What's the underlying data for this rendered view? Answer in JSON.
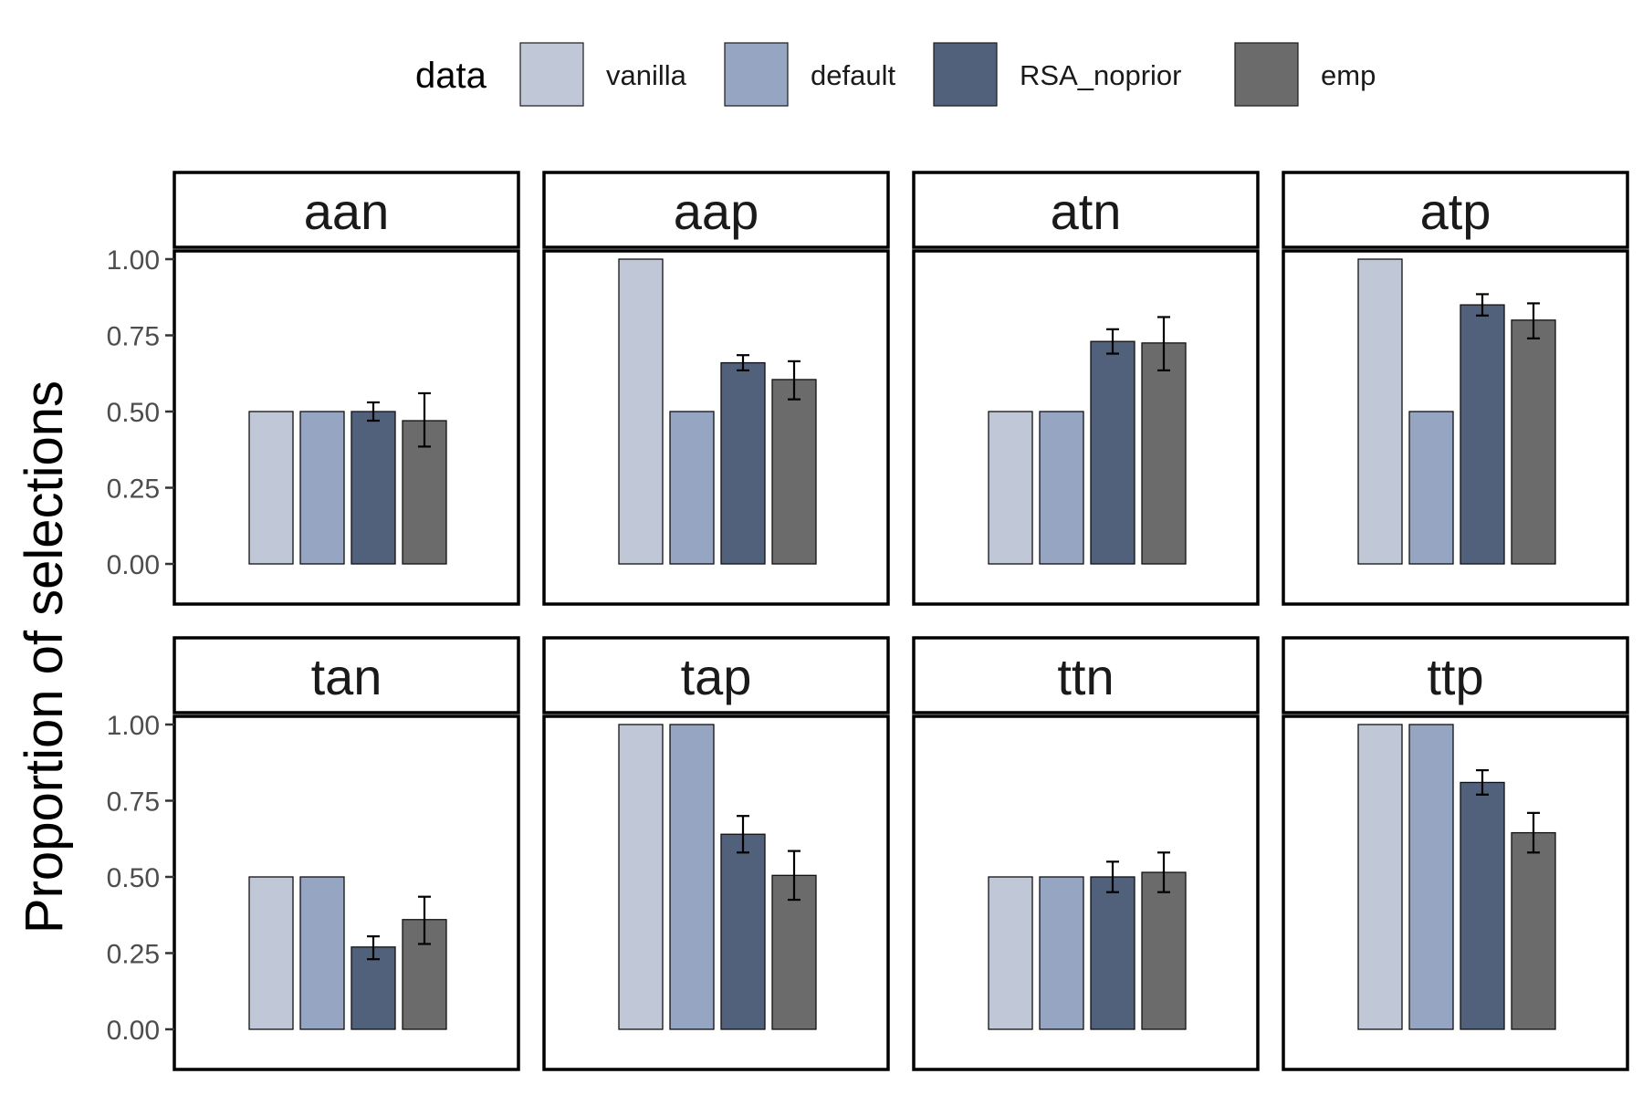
{
  "chart_data": {
    "type": "bar",
    "ylabel": "Proportion of selections",
    "ylim": [
      0,
      1
    ],
    "yticks": [
      "0.00",
      "0.25",
      "0.50",
      "0.75",
      "1.00"
    ],
    "legend": {
      "title": "data",
      "position": "top",
      "entries": [
        {
          "label": "vanilla",
          "color": "#c0c8d8"
        },
        {
          "label": "default",
          "color": "#95a5c2"
        },
        {
          "label": "RSA_noprior",
          "color": "#51607b"
        },
        {
          "label": "emp",
          "color": "#6b6b6b"
        }
      ]
    },
    "series_names": [
      "vanilla",
      "default",
      "RSA_noprior",
      "emp"
    ],
    "grid": false,
    "panels": [
      {
        "title": "aan",
        "values": [
          0.5,
          0.5,
          0.5,
          0.47
        ],
        "errors": [
          null,
          null,
          [
            0.47,
            0.53
          ],
          [
            0.385,
            0.56
          ]
        ]
      },
      {
        "title": "aap",
        "values": [
          1.0,
          0.5,
          0.66,
          0.605
        ],
        "errors": [
          null,
          null,
          [
            0.635,
            0.685
          ],
          [
            0.54,
            0.665
          ]
        ]
      },
      {
        "title": "atn",
        "values": [
          0.5,
          0.5,
          0.73,
          0.725
        ],
        "errors": [
          null,
          null,
          [
            0.69,
            0.77
          ],
          [
            0.635,
            0.81
          ]
        ]
      },
      {
        "title": "atp",
        "values": [
          1.0,
          0.5,
          0.85,
          0.8
        ],
        "errors": [
          null,
          null,
          [
            0.815,
            0.885
          ],
          [
            0.74,
            0.855
          ]
        ]
      },
      {
        "title": "tan",
        "values": [
          0.5,
          0.5,
          0.27,
          0.36
        ],
        "errors": [
          null,
          null,
          [
            0.23,
            0.305
          ],
          [
            0.28,
            0.435
          ]
        ]
      },
      {
        "title": "tap",
        "values": [
          1.0,
          1.0,
          0.64,
          0.505
        ],
        "errors": [
          null,
          null,
          [
            0.58,
            0.7
          ],
          [
            0.425,
            0.585
          ]
        ]
      },
      {
        "title": "ttn",
        "values": [
          0.5,
          0.5,
          0.5,
          0.515
        ],
        "errors": [
          null,
          null,
          [
            0.45,
            0.55
          ],
          [
            0.45,
            0.58
          ]
        ]
      },
      {
        "title": "ttp",
        "values": [
          1.0,
          1.0,
          0.81,
          0.645
        ],
        "errors": [
          null,
          null,
          [
            0.77,
            0.85
          ],
          [
            0.58,
            0.71
          ]
        ]
      }
    ]
  }
}
